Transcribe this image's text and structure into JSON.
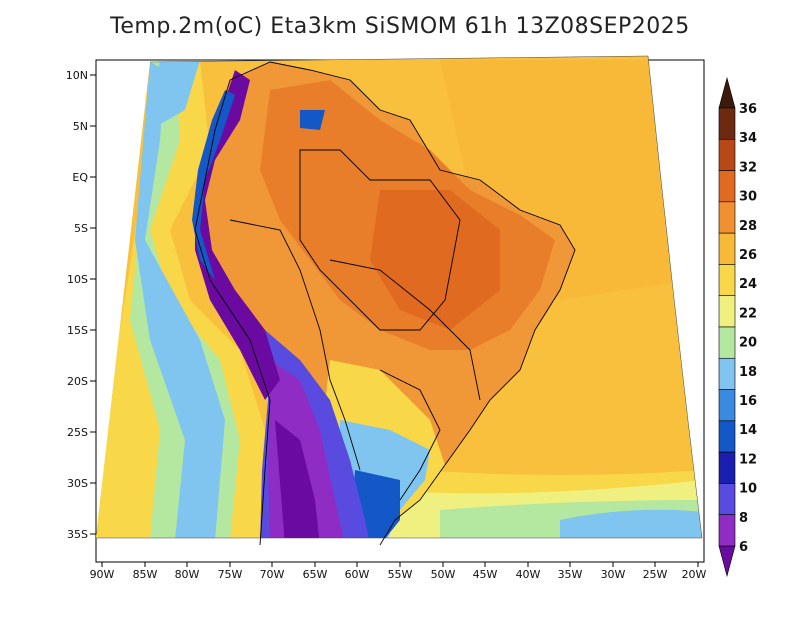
{
  "title": "Temp.2m(oC) Eta3km SiSMOM 61h 13Z08SEP2025",
  "axes": {
    "lon_labels": [
      "90W",
      "85W",
      "80W",
      "75W",
      "70W",
      "65W",
      "60W",
      "55W",
      "50W",
      "45W",
      "40W",
      "35W",
      "30W",
      "25W",
      "20W"
    ],
    "lat_labels": [
      "10N",
      "5N",
      "EQ",
      "5S",
      "10S",
      "15S",
      "20S",
      "25S",
      "30S",
      "35S"
    ]
  },
  "colorbar": {
    "levels": [
      "6",
      "8",
      "10",
      "12",
      "14",
      "16",
      "18",
      "20",
      "22",
      "24",
      "26",
      "28",
      "30",
      "32",
      "34",
      "36"
    ],
    "colors": [
      "#6a0aa0",
      "#8e2cc4",
      "#5a4be0",
      "#1a1fb0",
      "#1458c8",
      "#3a8ae0",
      "#80c4f0",
      "#b4e8a0",
      "#f0f080",
      "#f8d848",
      "#f8b838",
      "#f09030",
      "#e06a20",
      "#b84818",
      "#6e2a10",
      "#3a1a0a"
    ]
  },
  "regions": {
    "ocean": "#f8c03c",
    "land_warm": "#f09838",
    "land_hot": "#e87e2a",
    "andes_cold": "#6a0aa0"
  }
}
